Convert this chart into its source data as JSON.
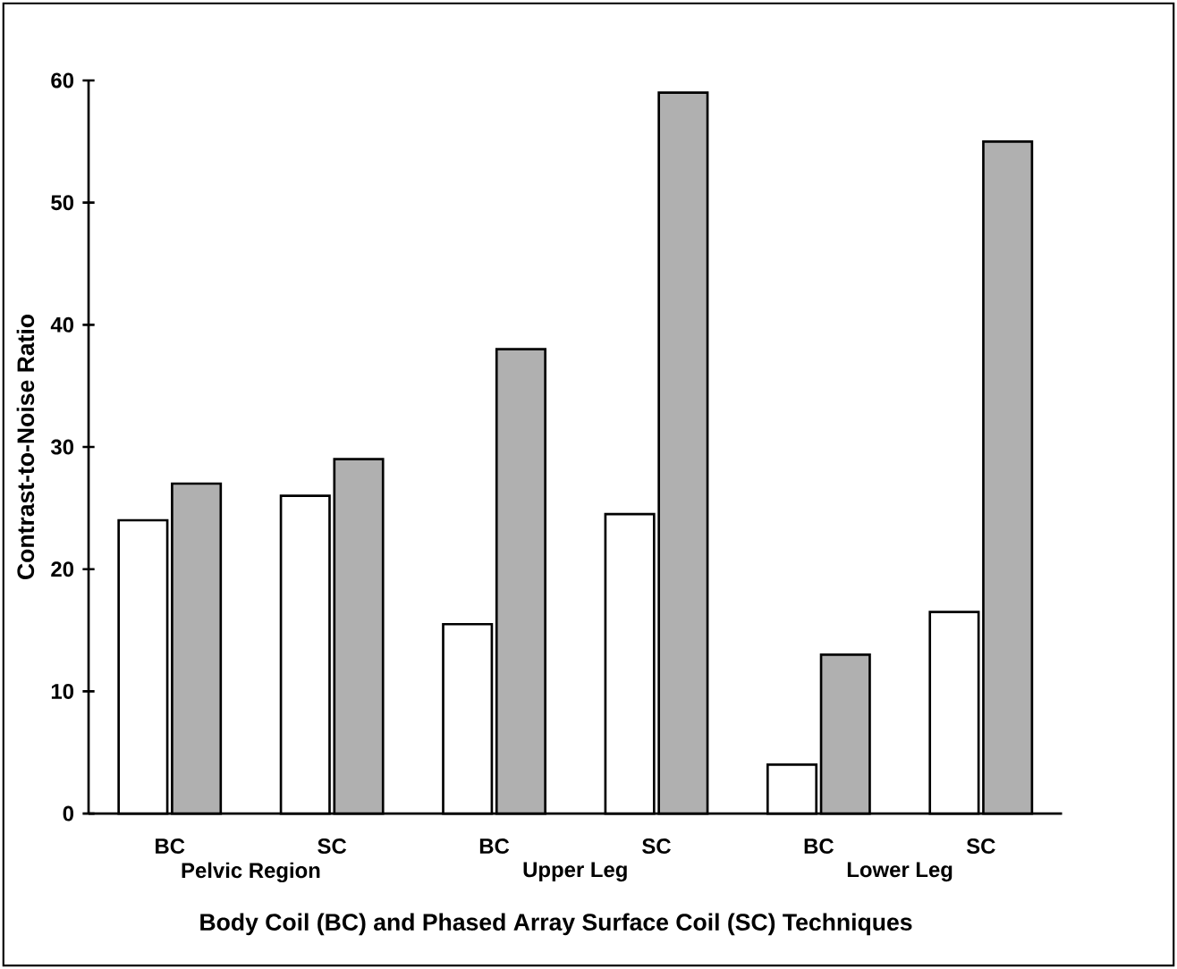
{
  "chart_data": {
    "type": "bar",
    "xlabel": "Body Coil (BC) and Phased Array Surface Coil (SC) Techniques",
    "ylabel": "Contrast-to-Noise Ratio",
    "categories": [
      "BC",
      "SC",
      "BC",
      "SC",
      "BC",
      "SC"
    ],
    "annotations": [
      "Pelvic Region",
      "Upper Leg",
      "Lower Leg"
    ],
    "series": [
      {
        "color": "#ffffff",
        "values": [
          24,
          26,
          15.5,
          24.5,
          4,
          16.5
        ]
      },
      {
        "color": "#b0b0b0",
        "values": [
          27,
          29,
          38,
          59,
          13,
          55
        ]
      }
    ],
    "ylim": [
      0,
      60
    ],
    "yticks": [
      0,
      10,
      20,
      30,
      40,
      50,
      60
    ],
    "grid": false
  }
}
